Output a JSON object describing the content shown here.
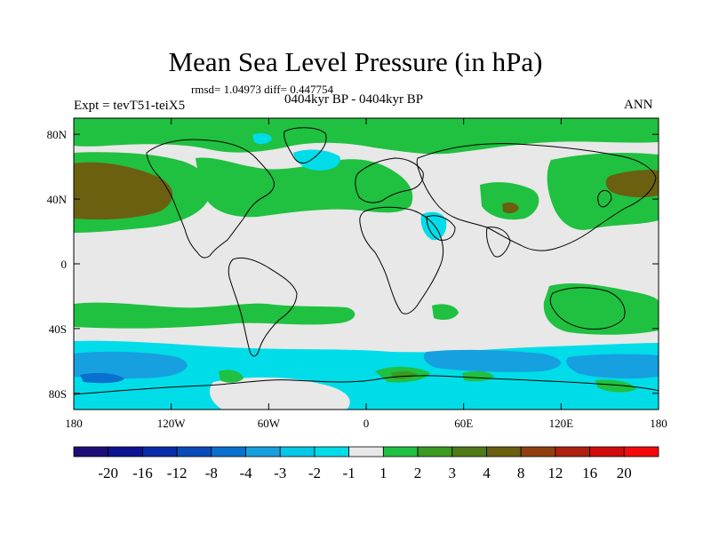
{
  "title": "Mean Sea Level Pressure (in hPa)",
  "stats_line": "rmsd= 1.04973  diff= 0.447754",
  "expt_label": "Expt = tevT51-teiX5",
  "period_label": "0404kyr BP - 0404kyr BP",
  "season_label": "ANN",
  "lat_ticks": [
    {
      "label": "80N",
      "lat": 80
    },
    {
      "label": "40N",
      "lat": 40
    },
    {
      "label": "0",
      "lat": 0
    },
    {
      "label": "40S",
      "lat": -40
    },
    {
      "label": "80S",
      "lat": -80
    }
  ],
  "lon_ticks": [
    {
      "label": "180",
      "lon": -180
    },
    {
      "label": "120W",
      "lon": -120
    },
    {
      "label": "60W",
      "lon": -60
    },
    {
      "label": "0",
      "lon": 0
    },
    {
      "label": "60E",
      "lon": 60
    },
    {
      "label": "120E",
      "lon": 120
    },
    {
      "label": "180",
      "lon": 180
    }
  ],
  "colorbar": {
    "colors": [
      "#1c0e78",
      "#0c1490",
      "#0a2ca8",
      "#0a4cba",
      "#0a70ce",
      "#16a0e0",
      "#00c8e6",
      "#00dde8",
      "#e8e8e8",
      "#20c040",
      "#3a9a22",
      "#4e7b18",
      "#6a6010",
      "#904010",
      "#b02010",
      "#d00c0c",
      "#f40a0a"
    ],
    "labels": [
      "-20",
      "-16",
      "-12",
      "-8",
      "-4",
      "-3",
      "-2",
      "-1",
      "1",
      "2",
      "3",
      "4",
      "8",
      "12",
      "16",
      "20"
    ]
  },
  "colors": {
    "neutral": "#e8e8e8",
    "green": "#20c040",
    "dark_green": "#3a9a22",
    "olive": "#6a6010",
    "cyan": "#00dde8",
    "cyan2": "#00c8e6",
    "blue": "#16a0e0",
    "blue2": "#0a70ce"
  }
}
